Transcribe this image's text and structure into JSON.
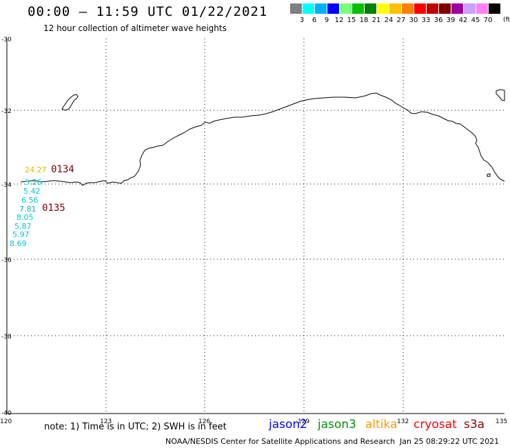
{
  "title": "00:00 – 11:59 UTC 01/22/2021",
  "subtitle": "12 hour collection of altimeter wave heights",
  "color_scale": {
    "units": "(ft)",
    "labels": [
      "3",
      "6",
      "9",
      "12",
      "15",
      "18",
      "21",
      "24",
      "27",
      "30",
      "33",
      "36",
      "39",
      "42",
      "45",
      "70"
    ],
    "colors": [
      "#808080",
      "#00ffff",
      "#00b0ff",
      "#0000ff",
      "#7cff7c",
      "#00c000",
      "#008000",
      "#ffff00",
      "#ffc000",
      "#ff8000",
      "#ff0000",
      "#c00000",
      "#800000",
      "#a000a0",
      "#c8a0ff",
      "#ff80ff",
      "#000000"
    ]
  },
  "axes": {
    "lat_labels": [
      "-30",
      "-32",
      "-34",
      "-36",
      "-38",
      "-40"
    ],
    "lon_labels": [
      "120",
      "123",
      "126",
      "129",
      "132",
      "135"
    ]
  },
  "passes": [
    {
      "label": "0134",
      "color": "#7b0000"
    },
    {
      "label": "0135",
      "color": "#7b0000"
    }
  ],
  "observations": [
    {
      "value": "24.27",
      "color": "#e8b800"
    },
    {
      "value": "5.26",
      "color": "#00c8d8"
    },
    {
      "value": "5.42",
      "color": "#00c8d8"
    },
    {
      "value": "6.56",
      "color": "#00c8d8"
    },
    {
      "value": "7.81",
      "color": "#00b0c0"
    },
    {
      "value": "8.05",
      "color": "#00c8d8"
    },
    {
      "value": "5.87",
      "color": "#00c8d8"
    },
    {
      "value": "5.97",
      "color": "#00c8d8"
    },
    {
      "value": "8.69",
      "color": "#00c8d8"
    }
  ],
  "note": "note:  1) Time is in UTC;  2) SWH is in feet",
  "satellites": [
    {
      "name": "jason2",
      "color": "#0000ff"
    },
    {
      "name": "jason3",
      "color": "#009000"
    },
    {
      "name": "altika",
      "color": "#ff9900"
    },
    {
      "name": "cryosat",
      "color": "#ff0000"
    },
    {
      "name": "s3a",
      "color": "#8b0000"
    }
  ],
  "credit": "NOAA/NESDIS Center for Satellite Applications and Research",
  "timestamp": "Jan 25 08:29:22 UTC 2021"
}
